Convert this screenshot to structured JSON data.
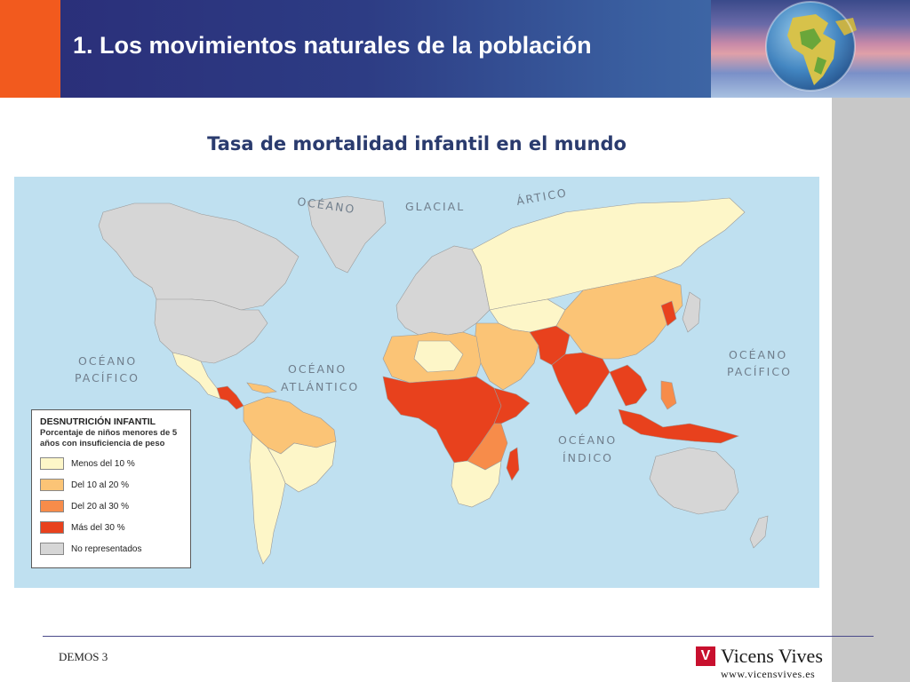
{
  "slide": {
    "title": "1. Los movimientos naturales de la población",
    "footer_left": "DEMOS 3",
    "brand_name": "Vicens Vives",
    "brand_url": "www.vicensvives.es"
  },
  "map": {
    "title": "Tasa de mortalidad infantil en el mundo",
    "ocean_labels": {
      "arctic_1": "OCÉANO",
      "arctic_2": "GLACIAL",
      "arctic_3": "ÁRTICO",
      "pacific_west_1": "OCÉANO",
      "pacific_west_2": "PACÍFICO",
      "atlantic_1": "OCÉANO",
      "atlantic_2": "ATLÁNTICO",
      "pacific_east_1": "OCÉANO",
      "pacific_east_2": "PACÍFICO",
      "indian_1": "OCÉANO",
      "indian_2": "ÍNDICO"
    },
    "colors": {
      "ocean": "#bfe0f0",
      "lt10": "#fdf6c8",
      "10to20": "#fbc476",
      "20to30": "#f78c4a",
      "gt30": "#e8411d",
      "no_data": "#d6d6d6"
    },
    "legend": {
      "title": "DESNUTRICIÓN INFANTIL",
      "subtitle": "Porcentaje de niños menores de 5 años con insuficiencia de peso",
      "items": [
        {
          "label": "Menos del 10 %",
          "color": "#fdf6c8"
        },
        {
          "label": "Del 10 al 20 %",
          "color": "#fbc476"
        },
        {
          "label": "Del 20 al 30 %",
          "color": "#f78c4a"
        },
        {
          "label": "Más del 30 %",
          "color": "#e8411d"
        },
        {
          "label": "No representados",
          "color": "#d6d6d6"
        }
      ]
    }
  },
  "icons": {
    "header_image": "earth-globe-icon",
    "brand_logo": "vicens-vives-logo-icon"
  }
}
